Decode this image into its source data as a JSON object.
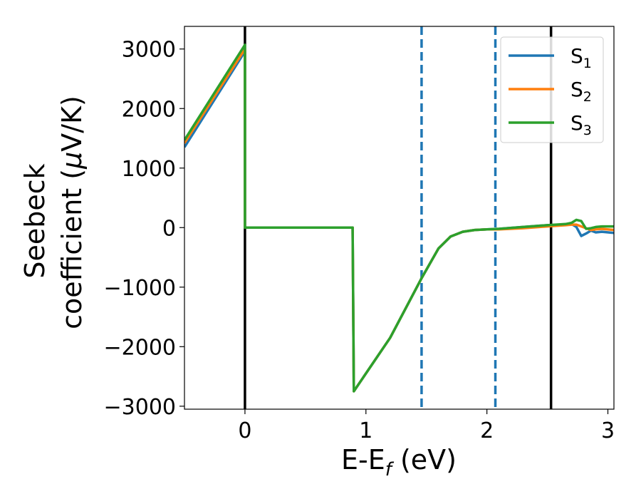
{
  "chart_data": {
    "type": "line",
    "xlabel_main": "E-E",
    "xlabel_sub": "f",
    "xlabel_tail": " (eV)",
    "ylabel_line1": "Seebeck",
    "ylabel_line2_pre": "coefficient  (",
    "ylabel_mu": "μ",
    "ylabel_line2_post": "V/K)",
    "xlim": [
      -0.5,
      3.05
    ],
    "ylim": [
      -3050,
      3380
    ],
    "xticks": [
      0,
      1,
      2,
      3
    ],
    "xtick_labels": [
      "0",
      "1",
      "2",
      "3"
    ],
    "yticks": [
      3000,
      2000,
      1000,
      0,
      -1000,
      -2000,
      -3000
    ],
    "ytick_labels": [
      "3000",
      "2000",
      "1000",
      "0",
      "−1000",
      "−2000",
      "−3000"
    ],
    "vlines_solid": [
      0.0,
      2.53
    ],
    "vlines_dashed": [
      1.46,
      2.07
    ],
    "legend_position": "top-right",
    "series": [
      {
        "name": "S1",
        "label_base": "S",
        "label_sub": "1",
        "color": "#1f77b4",
        "x": [
          -0.5,
          0.0,
          0.0,
          0.89,
          0.9,
          1.2,
          1.46,
          1.6,
          1.7,
          1.8,
          1.9,
          2.0,
          2.1,
          2.3,
          2.5,
          2.65,
          2.7,
          2.74,
          2.78,
          2.82,
          2.86,
          2.9,
          2.95,
          3.05
        ],
        "y": [
          1350,
          2960,
          0,
          0,
          -2750,
          -1850,
          -850,
          -350,
          -150,
          -70,
          -40,
          -30,
          -20,
          10,
          40,
          50,
          60,
          10,
          -140,
          -100,
          -50,
          -80,
          -70,
          -90
        ]
      },
      {
        "name": "S2",
        "label_base": "S",
        "label_sub": "2",
        "color": "#ff7f0e",
        "x": [
          -0.5,
          0.0,
          0.0,
          0.89,
          0.9,
          1.2,
          1.46,
          1.6,
          1.7,
          1.8,
          1.9,
          2.0,
          2.1,
          2.3,
          2.5,
          2.65,
          2.7,
          2.74,
          2.78,
          2.82,
          2.86,
          2.9,
          2.95,
          3.05
        ],
        "y": [
          1420,
          3000,
          0,
          0,
          -2750,
          -1850,
          -850,
          -350,
          -150,
          -70,
          -40,
          -30,
          -30,
          -10,
          20,
          40,
          50,
          50,
          20,
          -10,
          -40,
          -30,
          -20,
          -40
        ]
      },
      {
        "name": "S3",
        "label_base": "S",
        "label_sub": "3",
        "color": "#2ca02c",
        "x": [
          -0.5,
          0.0,
          0.0,
          0.89,
          0.9,
          1.2,
          1.46,
          1.6,
          1.7,
          1.8,
          1.9,
          2.0,
          2.1,
          2.3,
          2.5,
          2.65,
          2.7,
          2.74,
          2.78,
          2.82,
          2.86,
          2.9,
          2.95,
          3.05
        ],
        "y": [
          1470,
          3070,
          0,
          0,
          -2750,
          -1850,
          -850,
          -350,
          -150,
          -70,
          -40,
          -30,
          -20,
          10,
          40,
          60,
          80,
          130,
          110,
          -20,
          -10,
          10,
          20,
          20
        ]
      }
    ]
  }
}
